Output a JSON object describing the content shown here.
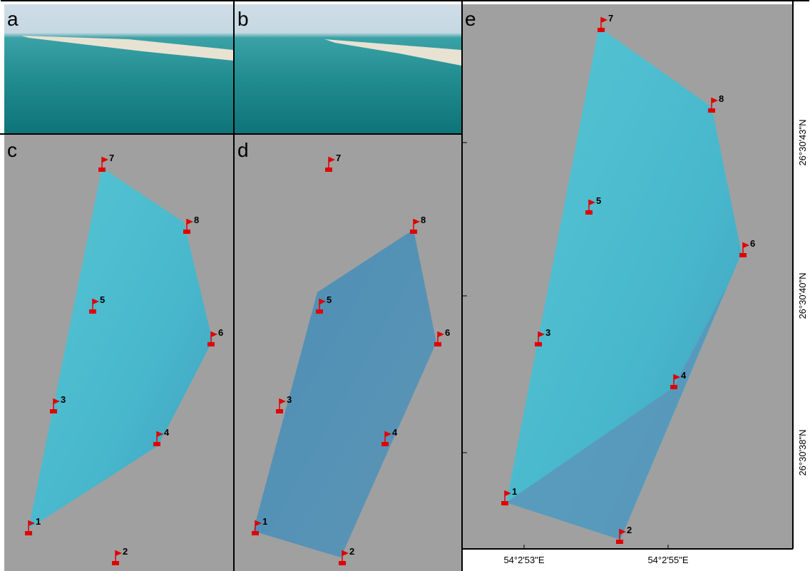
{
  "panels": [
    {
      "label": "a"
    },
    {
      "label": "b"
    },
    {
      "label": "c",
      "flags": [
        "1",
        "2",
        "3",
        "4",
        "5",
        "6",
        "7",
        "8"
      ]
    },
    {
      "label": "d",
      "flags": [
        "1",
        "2",
        "3",
        "4",
        "5",
        "6",
        "7",
        "8"
      ]
    },
    {
      "label": "e",
      "flags": [
        "1",
        "2",
        "3",
        "4",
        "5",
        "6",
        "7",
        "8"
      ]
    }
  ],
  "map_axes": {
    "x_labels": [
      "54°2'53\"E",
      "54°2'55\"E"
    ],
    "y_labels": [
      "26°30'43\"N",
      "26°30'40\"N",
      "26°30'38\"N"
    ]
  }
}
